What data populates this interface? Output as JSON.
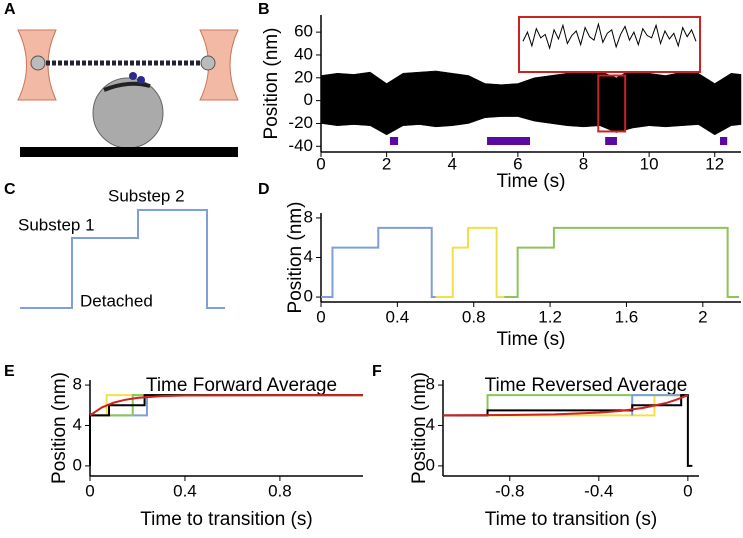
{
  "panel_labels": [
    "A",
    "B",
    "C",
    "D",
    "E",
    "F"
  ],
  "diagram_c": {
    "labels": [
      "Substep 2",
      "Substep 1",
      "Detached"
    ]
  },
  "chart_data": [
    {
      "type": "band",
      "xlabel": "Time (s)",
      "ylabel": "Position (nm)",
      "xlim": [
        0,
        12.8
      ],
      "ylim": [
        -45,
        75
      ],
      "xticks": [
        0,
        2,
        4,
        6,
        8,
        10,
        12
      ],
      "yticks": [
        -40,
        -20,
        0,
        20,
        40,
        60
      ],
      "x": [
        0,
        0.5,
        1,
        1.5,
        2,
        2.5,
        3,
        3.5,
        4,
        4.5,
        5,
        5.5,
        6,
        6.5,
        7,
        7.5,
        8,
        8.5,
        9,
        9.5,
        10,
        10.5,
        11,
        11.5,
        12,
        12.5,
        12.8
      ],
      "series": [
        {
          "color": "#000000",
          "values": [
            22,
            24,
            23,
            25,
            15,
            24,
            25,
            26,
            24,
            22,
            15,
            14,
            15,
            20,
            22,
            24,
            25,
            26,
            20,
            28,
            24,
            22,
            25,
            24,
            15,
            24,
            23
          ]
        },
        {
          "color": "#000000",
          "values": [
            -20,
            -22,
            -21,
            -22,
            -30,
            -22,
            -21,
            -23,
            -22,
            -20,
            -15,
            -14,
            -14,
            -18,
            -20,
            -22,
            -23,
            -22,
            -28,
            -24,
            -22,
            -23,
            -22,
            -21,
            -30,
            -22,
            -21
          ]
        }
      ],
      "events": [
        [
          2.1,
          2.35
        ],
        [
          5.06,
          6.37
        ],
        [
          8.66,
          9.02
        ],
        [
          12.16,
          12.38
        ]
      ],
      "event_color": "#5a0aa0",
      "highlight": {
        "x": [
          8.45,
          9.27
        ],
        "y": [
          -27,
          22
        ],
        "color": "#cc2222"
      },
      "inset": {
        "color": "#000000",
        "values": [
          52,
          60,
          48,
          63,
          55,
          58,
          46,
          62,
          54,
          66,
          50,
          57,
          61,
          49,
          64,
          56,
          53,
          67,
          51,
          59,
          62,
          47,
          58,
          65,
          53,
          60,
          49,
          63,
          57,
          55,
          66,
          50,
          61,
          54,
          59,
          48,
          64,
          56,
          62,
          52
        ]
      }
    },
    {
      "type": "step",
      "xlabel": "Time (s)",
      "ylabel": "Position (nm)",
      "xlim": [
        0,
        2.2
      ],
      "ylim": [
        -0.5,
        8.5
      ],
      "xticks": [
        0,
        0.4,
        0.8,
        1.2,
        1.6,
        2.0
      ],
      "yticks": [
        0,
        4,
        8
      ],
      "series": [
        {
          "color": "#7f9fd8",
          "x": [
            0,
            0.06,
            0.06,
            0.3,
            0.3,
            0.58,
            0.58,
            0.64
          ],
          "values": [
            0,
            0,
            5,
            5,
            7,
            7,
            0,
            0
          ]
        },
        {
          "color": "#f2e04a",
          "x": [
            0.6,
            0.69,
            0.69,
            0.77,
            0.77,
            0.92,
            0.92,
            1.0
          ],
          "values": [
            0,
            0,
            5,
            5,
            7,
            7,
            0,
            0
          ]
        },
        {
          "color": "#8cc45a",
          "x": [
            0.96,
            1.03,
            1.03,
            1.22,
            1.22,
            2.13,
            2.13,
            2.19
          ],
          "values": [
            0,
            0,
            5,
            5,
            7,
            7,
            0,
            0
          ]
        }
      ]
    },
    {
      "type": "step",
      "title": "Time Forward Average",
      "xlabel": "Time to transition (s)",
      "ylabel": "Position (nm)",
      "xlim": [
        0,
        1.15
      ],
      "ylim": [
        -1,
        8.5
      ],
      "xticks": [
        0,
        0.4,
        0.8
      ],
      "yticks": [
        0,
        4,
        8
      ],
      "series": [
        {
          "color": "#7f9fd8",
          "x": [
            0,
            0.24,
            0.24,
            1.15
          ],
          "values": [
            5,
            5,
            7,
            7
          ]
        },
        {
          "color": "#f2e04a",
          "x": [
            0,
            0.07,
            0.07,
            1.15
          ],
          "values": [
            5,
            5,
            7,
            7
          ]
        },
        {
          "color": "#8cc45a",
          "x": [
            0,
            0.18,
            0.18,
            1.15
          ],
          "values": [
            5,
            5,
            7,
            7
          ]
        },
        {
          "color": "#000000",
          "x": [
            0,
            0,
            0.08,
            0.08,
            0.23,
            0.23,
            1.15
          ],
          "values": [
            0,
            5,
            5,
            6,
            6,
            7,
            7
          ]
        },
        {
          "color": "#d42020",
          "x": [
            0,
            0.05,
            0.1,
            0.15,
            0.2,
            0.3,
            0.4,
            0.6,
            0.8,
            1.15
          ],
          "values": [
            5.0,
            5.79,
            6.26,
            6.55,
            6.73,
            6.9,
            6.96,
            6.99,
            7.0,
            7.0
          ]
        }
      ]
    },
    {
      "type": "step",
      "title": "Time Reversed Average",
      "xlabel": "Time to transition (s)",
      "ylabel": "Position (nm)",
      "xlim": [
        -1.1,
        0.05
      ],
      "ylim": [
        -1,
        8.5
      ],
      "xticks": [
        -0.8,
        -0.4,
        0
      ],
      "yticks": [
        0,
        4,
        8
      ],
      "series": [
        {
          "color": "#8cc45a",
          "x": [
            -0.9,
            -0.9,
            0
          ],
          "values": [
            5,
            7,
            7
          ]
        },
        {
          "color": "#f2e04a",
          "x": [
            -0.9,
            -0.15,
            -0.15,
            0
          ],
          "values": [
            5,
            5,
            7,
            7
          ]
        },
        {
          "color": "#7f9fd8",
          "x": [
            -0.25,
            -0.25,
            0
          ],
          "values": [
            5,
            7,
            7
          ]
        },
        {
          "color": "#000000",
          "x": [
            -1.1,
            -0.9,
            -0.9,
            -0.25,
            -0.25,
            -0.03,
            -0.03,
            0,
            0,
            0.02
          ],
          "values": [
            5,
            5,
            5.5,
            5.5,
            6,
            6,
            7,
            7,
            0,
            0
          ]
        },
        {
          "color": "#d42020",
          "x": [
            -1.1,
            -0.8,
            -0.6,
            -0.4,
            -0.3,
            -0.2,
            -0.1,
            -0.05,
            0
          ],
          "values": [
            5.0,
            5.04,
            5.1,
            5.27,
            5.45,
            5.74,
            6.21,
            6.56,
            7.0
          ]
        }
      ]
    }
  ]
}
